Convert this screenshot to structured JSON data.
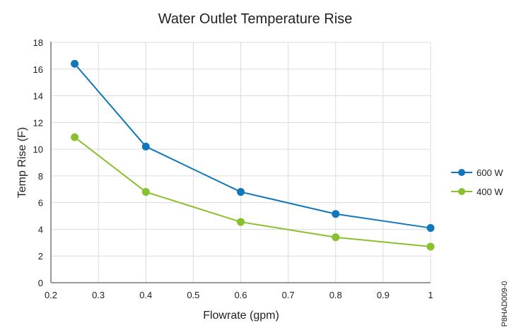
{
  "chart_data": {
    "type": "line",
    "title": "Water Outlet Temperature Rise",
    "xlabel": "Flowrate (gpm)",
    "ylabel": "Temp Rise (F)",
    "xlim": [
      0.2,
      1
    ],
    "ylim": [
      0,
      18
    ],
    "x_ticks": [
      "0.2",
      "0.3",
      "0.4",
      "0.5",
      "0.6",
      "0.7",
      "0.8",
      "0.9",
      "1"
    ],
    "y_ticks": [
      "0",
      "2",
      "4",
      "6",
      "8",
      "10",
      "12",
      "14",
      "16",
      "18"
    ],
    "grid": true,
    "legend_position": "right",
    "x": [
      0.25,
      0.4,
      0.6,
      0.8,
      1.0
    ],
    "series": [
      {
        "name": "600 W",
        "color": "#1177bb",
        "values": [
          16.4,
          10.2,
          6.8,
          5.15,
          4.1
        ]
      },
      {
        "name": "400 W",
        "color": "#88c02e",
        "values": [
          10.9,
          6.8,
          4.55,
          3.4,
          2.7
        ]
      }
    ],
    "annotation": "P8HAD009-0"
  }
}
